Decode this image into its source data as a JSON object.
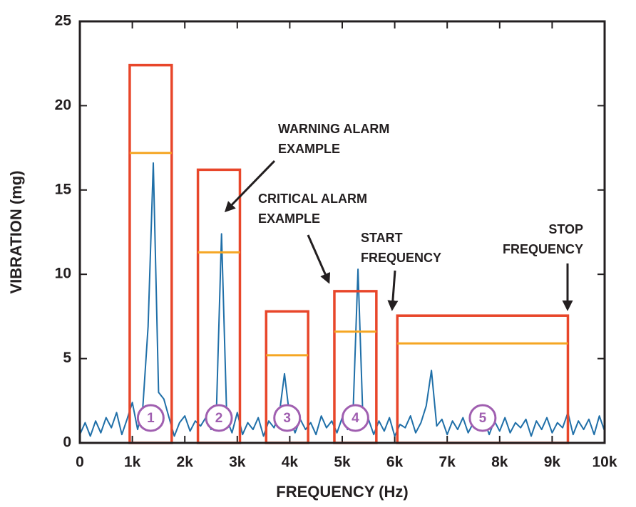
{
  "chart_data": {
    "type": "line",
    "x_label": "FREQUENCY (Hz)",
    "y_label": "VIBRATION (mg)",
    "x": [
      0,
      100,
      200,
      300,
      400,
      500,
      600,
      700,
      800,
      900,
      1000,
      1100,
      1200,
      1300,
      1400,
      1500,
      1600,
      1700,
      1800,
      1900,
      2000,
      2100,
      2200,
      2300,
      2400,
      2500,
      2600,
      2700,
      2800,
      2900,
      3000,
      3100,
      3200,
      3300,
      3400,
      3500,
      3600,
      3700,
      3800,
      3900,
      4000,
      4100,
      4200,
      4300,
      4400,
      4500,
      4600,
      4700,
      4800,
      4900,
      5000,
      5100,
      5200,
      5300,
      5400,
      5500,
      5600,
      5700,
      5800,
      5900,
      6000,
      6100,
      6200,
      6300,
      6400,
      6500,
      6600,
      6700,
      6800,
      6900,
      7000,
      7100,
      7200,
      7300,
      7400,
      7500,
      7600,
      7700,
      7800,
      7900,
      8000,
      8100,
      8200,
      8300,
      8400,
      8500,
      8600,
      8700,
      8800,
      8900,
      9000,
      9100,
      9200,
      9300,
      9400,
      9500,
      9600,
      9700,
      9800,
      9900,
      10000
    ],
    "values": [
      0.5,
      1.2,
      0.4,
      1.3,
      0.6,
      1.5,
      0.9,
      1.8,
      0.5,
      1.4,
      2.4,
      0.8,
      2.1,
      6.9,
      16.6,
      3.0,
      2.6,
      1.5,
      0.4,
      1.2,
      1.6,
      0.7,
      1.3,
      1.0,
      1.5,
      0.8,
      1.7,
      12.4,
      1.4,
      0.6,
      1.8,
      0.5,
      1.2,
      0.8,
      1.5,
      0.4,
      1.3,
      0.9,
      1.7,
      4.1,
      1.5,
      0.6,
      1.4,
      0.8,
      1.2,
      0.5,
      1.6,
      0.9,
      1.3,
      0.6,
      1.5,
      0.8,
      1.2,
      10.3,
      0.9,
      1.4,
      0.5,
      1.3,
      0.7,
      1.5,
      0.4,
      1.1,
      0.9,
      1.6,
      0.6,
      1.2,
      2.2,
      4.3,
      1.0,
      1.4,
      0.5,
      1.3,
      0.8,
      1.5,
      0.6,
      1.2,
      0.9,
      1.4,
      0.5,
      1.3,
      0.7,
      1.5,
      0.6,
      1.2,
      0.9,
      1.4,
      0.4,
      1.3,
      0.8,
      1.5,
      0.6,
      1.2,
      0.9,
      1.8,
      0.5,
      1.3,
      0.8,
      1.4,
      0.5,
      1.6,
      0.7
    ],
    "color": "#1f6fa8",
    "xlim": [
      0,
      10000
    ],
    "ylim": [
      0,
      25
    ],
    "xticks": [
      0,
      {
        "value": 1000,
        "label": "1k"
      },
      {
        "value": 2000,
        "label": "2k"
      },
      {
        "value": 3000,
        "label": "3k"
      },
      {
        "value": 4000,
        "label": "4k"
      },
      {
        "value": 5000,
        "label": "5k"
      },
      {
        "value": 6000,
        "label": "6k"
      },
      {
        "value": 7000,
        "label": "7k"
      },
      {
        "value": 8000,
        "label": "8k"
      },
      {
        "value": 9000,
        "label": "9k"
      },
      {
        "value": 10000,
        "label": "10k"
      }
    ],
    "yticks": [
      0,
      5,
      10,
      15,
      20,
      25
    ],
    "alarms": [
      {
        "label": "1",
        "start": 950,
        "stop": 1750,
        "critical": 22.4,
        "warning": 17.2
      },
      {
        "label": "2",
        "start": 2250,
        "stop": 3050,
        "critical": 16.2,
        "warning": 11.3
      },
      {
        "label": "3",
        "start": 3550,
        "stop": 4350,
        "critical": 7.8,
        "warning": 5.2
      },
      {
        "label": "4",
        "start": 4850,
        "stop": 5650,
        "critical": 9.0,
        "warning": 6.6
      },
      {
        "label": "5",
        "start": 6050,
        "stop": 9300,
        "critical": 7.55,
        "warning": 5.9
      }
    ],
    "critical_color": "#e8462a",
    "warning_color": "#f5a623",
    "label_color": "#a05fb0",
    "annotations": [
      {
        "lines": [
          "WARNING ALARM",
          "EXAMPLE"
        ]
      },
      {
        "lines": [
          "CRITICAL ALARM",
          "EXAMPLE"
        ]
      },
      {
        "lines": [
          "START",
          "FREQUENCY"
        ]
      },
      {
        "lines": [
          "STOP",
          "FREQUENCY"
        ]
      }
    ]
  }
}
